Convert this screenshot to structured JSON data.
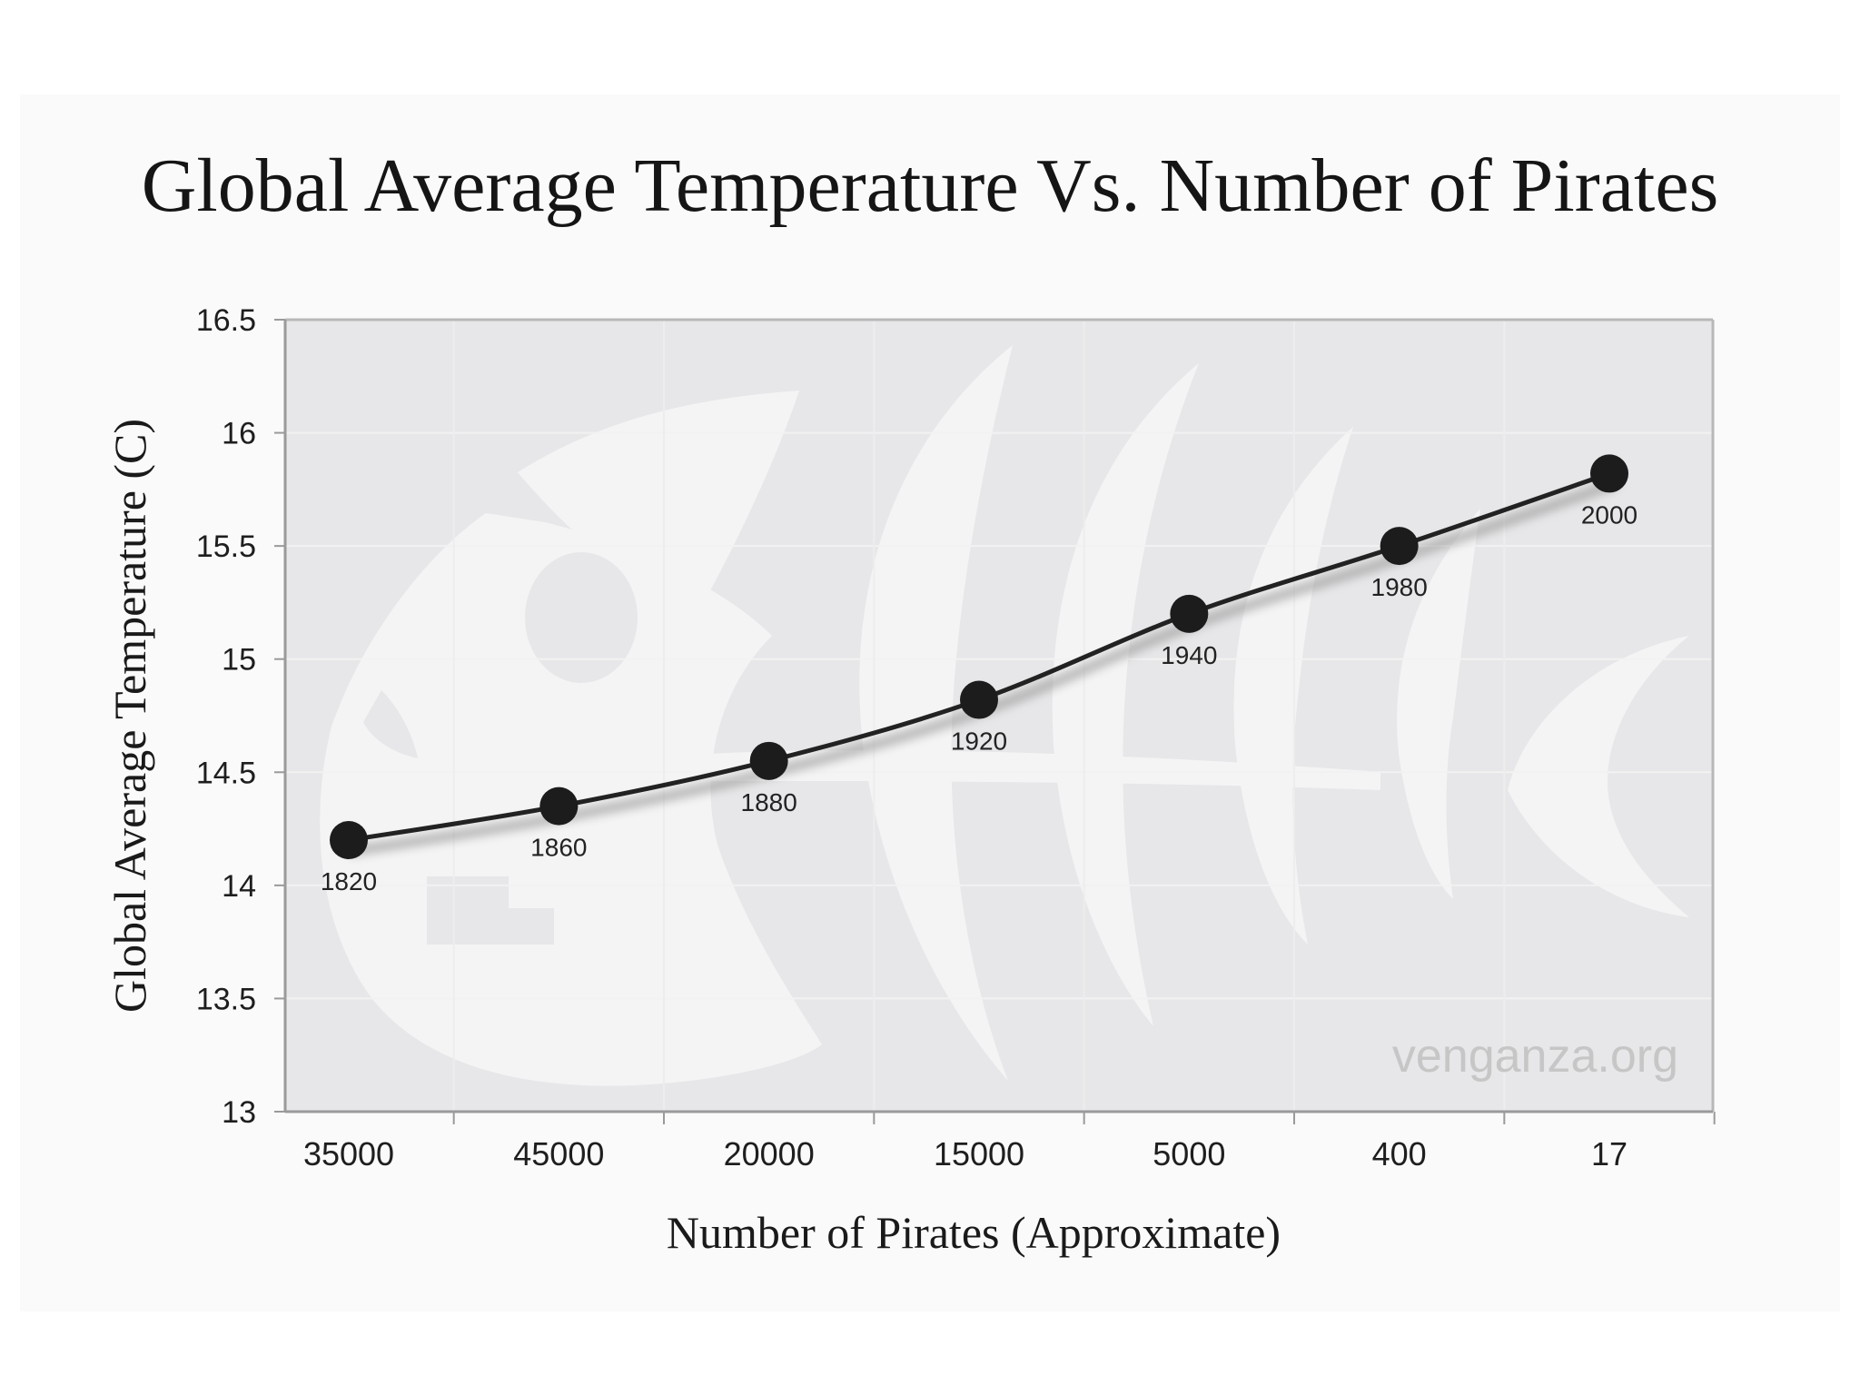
{
  "chart_data": {
    "type": "line",
    "title": "Global Average Temperature Vs. Number of Pirates",
    "xlabel": "Number of Pirates (Approximate)",
    "ylabel": "Global Average Temperature (C)",
    "categories": [
      "35000",
      "45000",
      "20000",
      "15000",
      "5000",
      "400",
      "17"
    ],
    "point_labels": [
      "1820",
      "1860",
      "1880",
      "1920",
      "1940",
      "1980",
      "2000"
    ],
    "series": [
      {
        "name": "Global Average Temperature",
        "values": [
          14.2,
          14.35,
          14.55,
          14.82,
          15.2,
          15.5,
          15.82
        ]
      }
    ],
    "ylim": [
      13,
      16.5
    ],
    "yticks": [
      "13",
      "13.5",
      "14",
      "14.5",
      "15",
      "15.5",
      "16",
      "16.5"
    ],
    "grid": true,
    "watermark": "venganza.org",
    "colors": {
      "line": "#222222",
      "marker": "#1c1c1c",
      "plot_bg": "#e7e7e9",
      "frame": "#b8b8b8"
    }
  }
}
